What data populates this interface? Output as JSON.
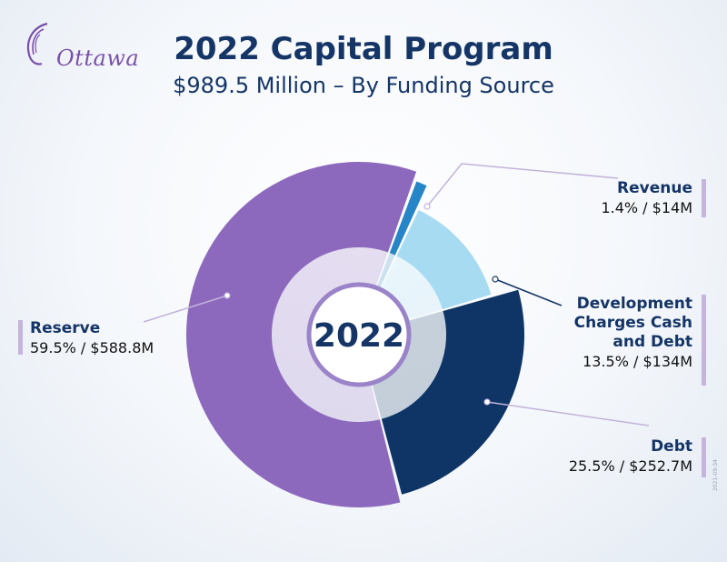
{
  "brand": {
    "logo_text": "Ottawa",
    "purple": "#7a4fa8"
  },
  "title": "2022 Capital Program",
  "subtitle": "$989.5 Million – By Funding Source",
  "center_label": "2022",
  "labels": {
    "reserve": {
      "name": "Reserve",
      "value": "59.5% / $588.8M"
    },
    "revenue": {
      "name": "Revenue",
      "value": "1.4% / $14M"
    },
    "development": {
      "name_line1": "Development",
      "name_line2": "Charges Cash",
      "name_line3": "and Debt",
      "value": "13.5% / $134M"
    },
    "debt": {
      "name": "Debt",
      "value": "25.5% / $252.7M"
    }
  },
  "stamp": "2021-09-34",
  "chart_data": {
    "type": "pie",
    "variant": "donut",
    "title": "2022 Capital Program",
    "subtitle": "$989.5 Million – By Funding Source",
    "total_millions": 989.5,
    "slices": [
      {
        "name": "Revenue",
        "percent": 1.4,
        "value_millions": 14,
        "color": "#2585c6"
      },
      {
        "name": "Development Charges Cash and Debt",
        "percent": 13.5,
        "value_millions": 134,
        "color": "#a6dbf2"
      },
      {
        "name": "Debt",
        "percent": 25.5,
        "value_millions": 252.7,
        "color": "#0e3566"
      },
      {
        "name": "Reserve",
        "percent": 59.5,
        "value_millions": 588.8,
        "color": "#8c69bd"
      }
    ]
  }
}
